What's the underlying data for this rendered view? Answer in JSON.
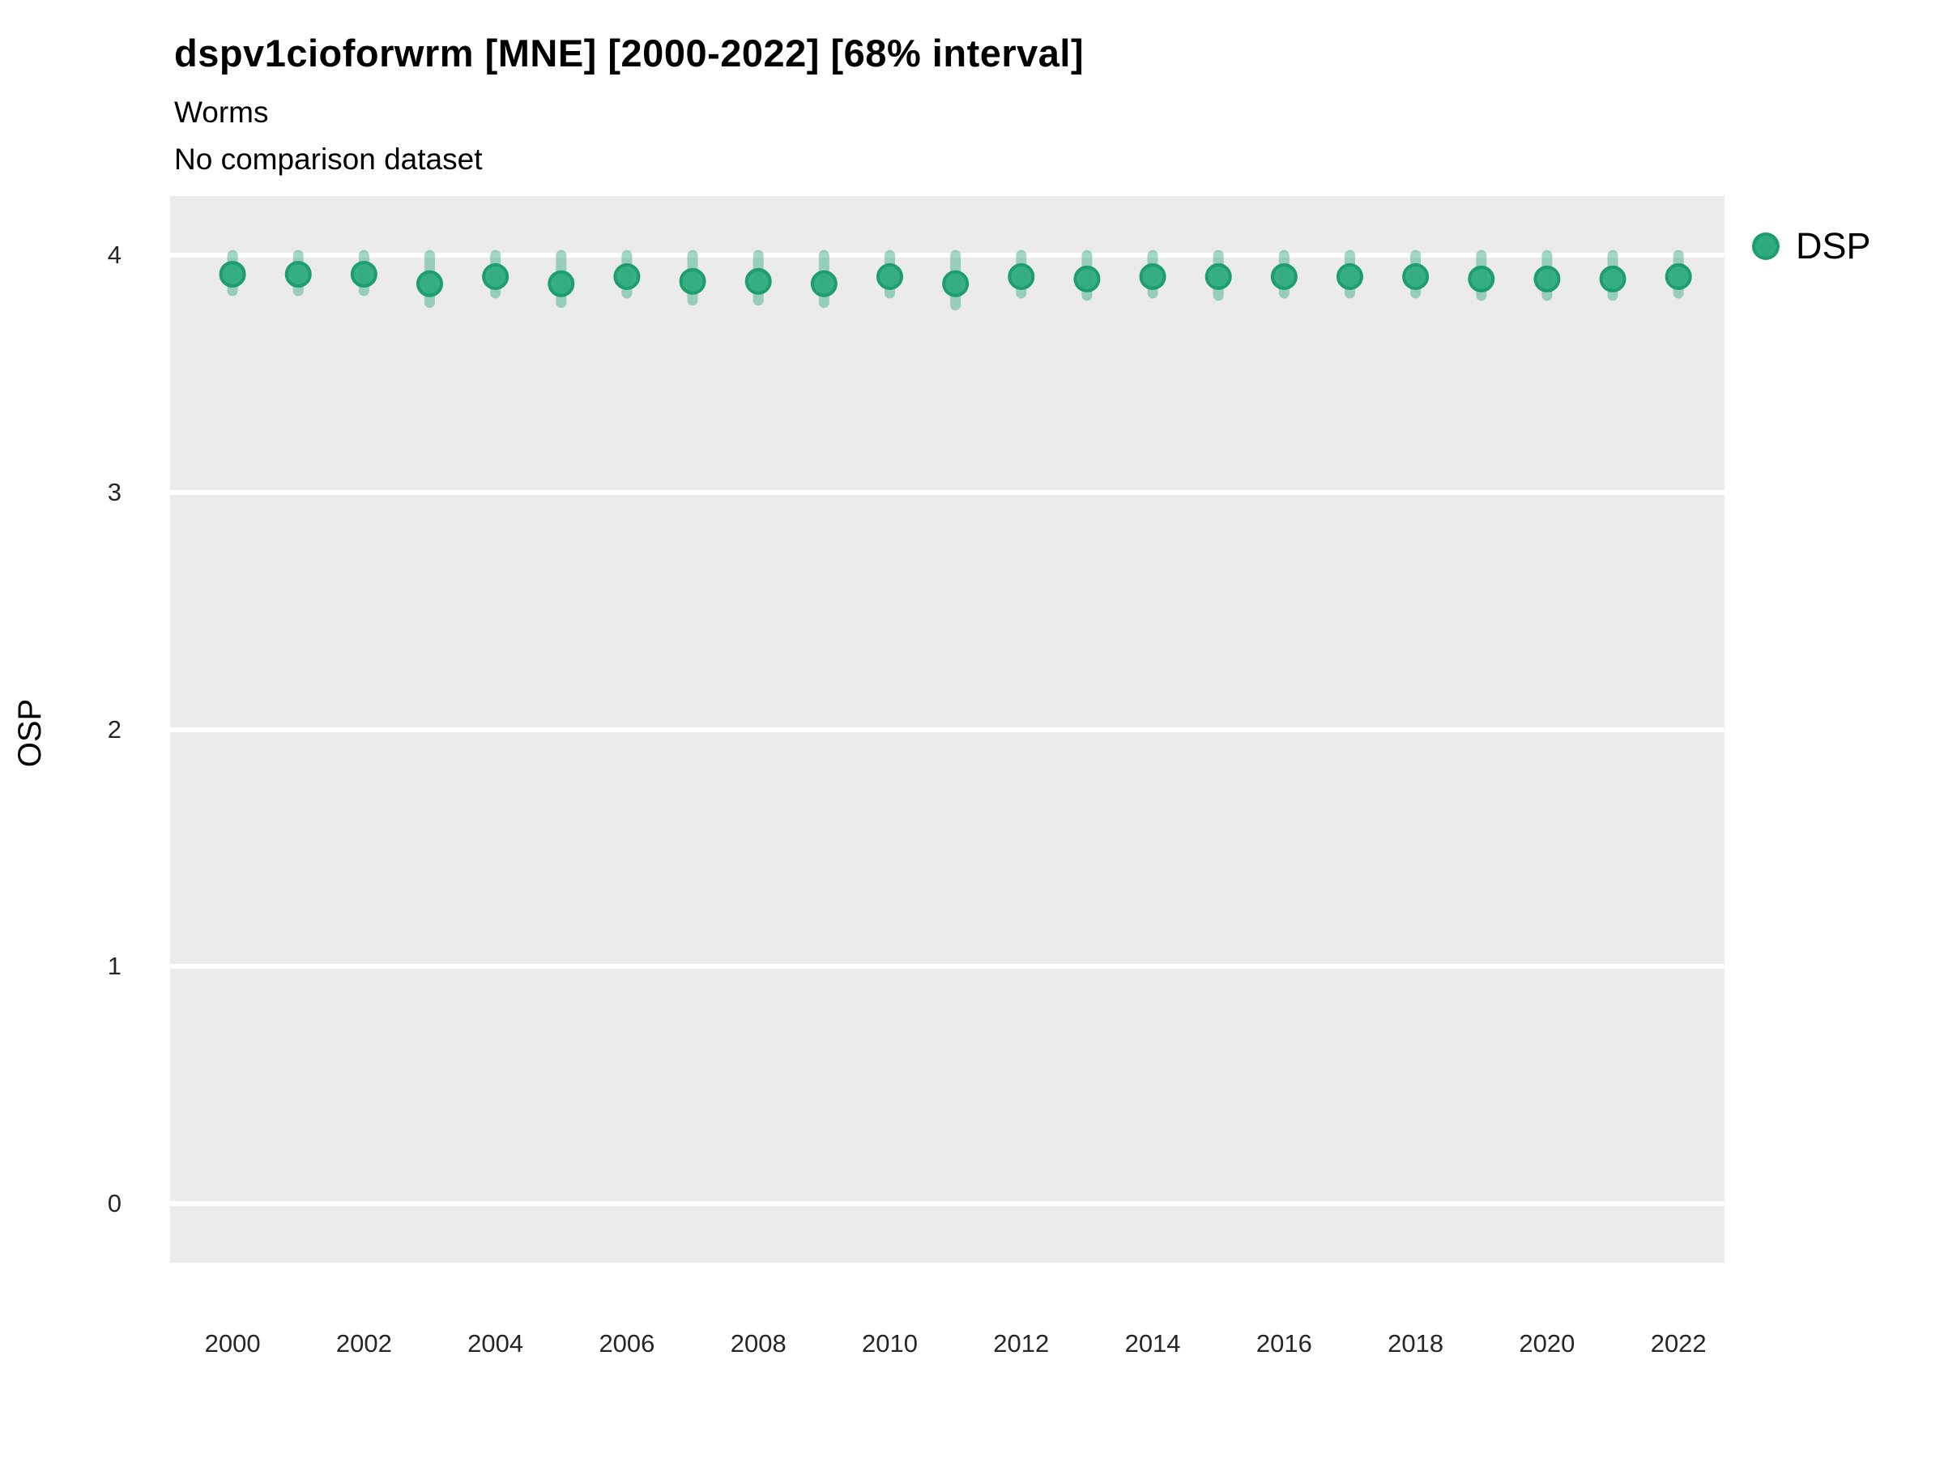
{
  "header": {
    "title": "dspv1cioforwrm [MNE] [2000-2022] [68% interval]",
    "subtitle1": "Worms",
    "subtitle2": "No comparison dataset"
  },
  "legend": {
    "position": "right",
    "items": [
      {
        "label": "DSP",
        "color": "#2eab7d",
        "stroke": "#1e9e6e"
      }
    ]
  },
  "axes": {
    "y_label": "OSP",
    "y_ticks": [
      0,
      1,
      2,
      3,
      4
    ],
    "x_ticks": [
      2000,
      2002,
      2004,
      2006,
      2008,
      2010,
      2012,
      2014,
      2016,
      2018,
      2020,
      2022
    ]
  },
  "colors": {
    "panel_background": "#EBEBEB",
    "gridline": "#FFFFFF",
    "point_fill": "#2eab7d",
    "point_stroke": "#1e9e6e",
    "interval_bar": "rgba(46,171,125,0.45)",
    "tick_text": "#262626",
    "title_text": "#000000"
  },
  "chart_data": {
    "type": "scatter",
    "title": "dspv1cioforwrm [MNE] [2000-2022] [68% interval]",
    "subtitle": "Worms",
    "caption": "No comparison dataset",
    "xlabel": "",
    "ylabel": "OSP",
    "xlim": [
      1999.05,
      2022.7
    ],
    "ylim": [
      -0.25,
      4.25
    ],
    "grid": "major-horizontal-white-on-grey",
    "legend_position": "right",
    "series": [
      {
        "name": "DSP",
        "marker": "point-with-interval",
        "interval_label": "68% interval",
        "x": [
          2000,
          2001,
          2002,
          2003,
          2004,
          2005,
          2006,
          2007,
          2008,
          2009,
          2010,
          2011,
          2012,
          2013,
          2014,
          2015,
          2016,
          2017,
          2018,
          2019,
          2020,
          2021,
          2022
        ],
        "y": [
          3.92,
          3.92,
          3.92,
          3.88,
          3.91,
          3.88,
          3.91,
          3.89,
          3.89,
          3.88,
          3.91,
          3.88,
          3.91,
          3.9,
          3.91,
          3.91,
          3.91,
          3.91,
          3.91,
          3.9,
          3.9,
          3.9,
          3.91
        ],
        "y_lo": [
          3.85,
          3.85,
          3.85,
          3.8,
          3.84,
          3.8,
          3.84,
          3.81,
          3.81,
          3.8,
          3.84,
          3.79,
          3.84,
          3.83,
          3.84,
          3.83,
          3.84,
          3.84,
          3.84,
          3.83,
          3.83,
          3.83,
          3.84
        ],
        "y_hi": [
          4.0,
          4.0,
          4.0,
          4.0,
          4.0,
          4.0,
          4.0,
          4.0,
          4.0,
          4.0,
          4.0,
          4.0,
          4.0,
          4.0,
          4.0,
          4.0,
          4.0,
          4.0,
          4.0,
          4.0,
          4.0,
          4.0,
          4.0
        ]
      }
    ]
  }
}
